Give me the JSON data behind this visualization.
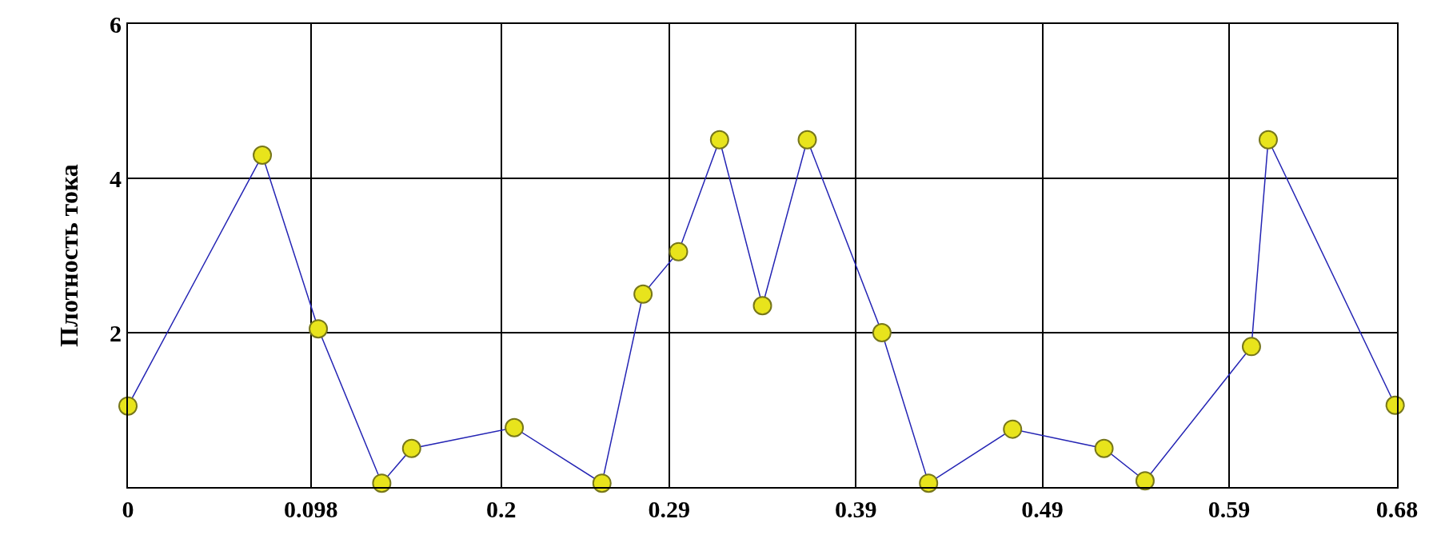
{
  "chart_data": {
    "type": "line",
    "ylabel": "Плотность тока",
    "x": [
      0,
      0.072,
      0.102,
      0.136,
      0.152,
      0.207,
      0.254,
      0.276,
      0.295,
      0.317,
      0.34,
      0.364,
      0.404,
      0.429,
      0.474,
      0.523,
      0.545,
      0.602,
      0.611,
      0.679
    ],
    "series": [
      {
        "color": "#2424b4",
        "values": [
          1.05,
          4.3,
          2.05,
          0.05,
          0.5,
          0.77,
          0.05,
          2.5,
          3.05,
          4.5,
          2.35,
          4.5,
          2.0,
          0.05,
          0.75,
          0.5,
          0.08,
          1.82,
          4.5,
          1.06
        ]
      }
    ],
    "xlim": [
      0,
      0.68
    ],
    "ylim": [
      0,
      6
    ],
    "xticks": [
      0,
      0.098,
      0.2,
      0.29,
      0.39,
      0.49,
      0.59,
      0.68
    ],
    "yticks": [
      {
        "value": 0,
        "label": null
      },
      2,
      4,
      6
    ],
    "grid": true,
    "marker": "circle",
    "line_style": "solid"
  }
}
